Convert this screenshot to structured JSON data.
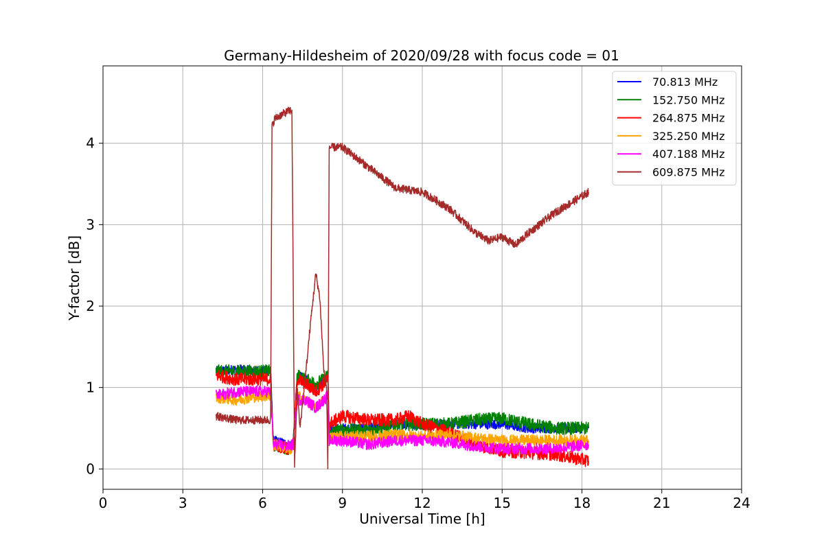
{
  "chart_data": {
    "type": "line",
    "title": "Germany-Hildesheim of 2020/09/28 with focus code = 01",
    "xlabel": "Universal Time [h]",
    "ylabel": "Y-factor [dB]",
    "xlim": [
      0,
      24
    ],
    "ylim": [
      -0.25,
      4.95
    ],
    "xticks": [
      0,
      3,
      6,
      9,
      12,
      15,
      18,
      21,
      24
    ],
    "yticks": [
      0,
      1,
      2,
      3,
      4
    ],
    "grid": true,
    "legend_position": "top-right",
    "series": [
      {
        "name": "  70.813 MHz",
        "color": "#0000ff",
        "noise": 0.06,
        "x": [
          4.25,
          5.0,
          6.0,
          6.3,
          6.4,
          7.0,
          7.15,
          7.3,
          7.6,
          8.0,
          8.3,
          8.45,
          8.5,
          9.0,
          10.0,
          11.0,
          12.0,
          13.0,
          14.0,
          15.0,
          16.0,
          17.0,
          18.25
        ],
        "y": [
          1.2,
          1.22,
          1.2,
          1.2,
          0.35,
          0.3,
          0.3,
          1.15,
          1.1,
          1.0,
          1.1,
          1.15,
          0.48,
          0.5,
          0.5,
          0.55,
          0.55,
          0.55,
          0.55,
          0.55,
          0.5,
          0.5,
          0.5
        ]
      },
      {
        "name": "152.750 MHz",
        "color": "#008000",
        "noise": 0.08,
        "x": [
          4.25,
          5.0,
          6.0,
          6.3,
          6.4,
          7.0,
          7.15,
          7.3,
          7.6,
          8.0,
          8.3,
          8.45,
          8.5,
          9.0,
          10.0,
          11.0,
          12.0,
          13.0,
          14.0,
          15.0,
          16.0,
          17.0,
          18.25
        ],
        "y": [
          1.2,
          1.2,
          1.2,
          1.2,
          0.3,
          0.25,
          0.3,
          1.15,
          1.1,
          1.05,
          1.1,
          1.15,
          0.45,
          0.48,
          0.48,
          0.55,
          0.55,
          0.55,
          0.6,
          0.62,
          0.55,
          0.5,
          0.5
        ]
      },
      {
        "name": "264.875 MHz",
        "color": "#ff0000",
        "noise": 0.08,
        "x": [
          4.25,
          5.0,
          6.0,
          6.3,
          6.4,
          7.0,
          7.15,
          7.3,
          7.6,
          8.0,
          8.3,
          8.45,
          8.5,
          9.0,
          10.0,
          11.0,
          11.5,
          12.0,
          13.0,
          14.0,
          15.0,
          16.0,
          17.0,
          18.25
        ],
        "y": [
          1.15,
          1.1,
          1.1,
          1.1,
          0.3,
          0.25,
          0.3,
          1.1,
          1.05,
          0.95,
          1.05,
          1.1,
          0.55,
          0.65,
          0.6,
          0.6,
          0.65,
          0.55,
          0.45,
          0.3,
          0.22,
          0.2,
          0.18,
          0.1
        ]
      },
      {
        "name": "325.250 MHz",
        "color": "#ffa500",
        "noise": 0.07,
        "x": [
          4.25,
          5.0,
          6.0,
          6.3,
          6.4,
          7.0,
          7.15,
          7.3,
          7.6,
          8.0,
          8.3,
          8.45,
          8.5,
          9.0,
          10.0,
          11.0,
          12.0,
          13.0,
          14.0,
          15.0,
          16.0,
          17.0,
          18.25
        ],
        "y": [
          0.88,
          0.85,
          0.9,
          0.9,
          0.3,
          0.25,
          0.25,
          0.9,
          0.85,
          0.75,
          0.85,
          0.9,
          0.38,
          0.4,
          0.4,
          0.42,
          0.4,
          0.42,
          0.38,
          0.35,
          0.35,
          0.35,
          0.35
        ]
      },
      {
        "name": "407.188 MHz",
        "color": "#ff00ff",
        "noise": 0.07,
        "x": [
          4.25,
          5.0,
          6.0,
          6.3,
          6.4,
          7.0,
          7.15,
          7.3,
          7.6,
          8.0,
          8.3,
          8.45,
          8.5,
          9.0,
          10.0,
          11.0,
          12.0,
          13.0,
          14.0,
          15.0,
          16.0,
          17.0,
          18.25
        ],
        "y": [
          0.9,
          0.95,
          0.95,
          0.95,
          0.3,
          0.28,
          0.3,
          0.85,
          0.85,
          0.75,
          0.85,
          0.9,
          0.35,
          0.35,
          0.3,
          0.35,
          0.35,
          0.33,
          0.28,
          0.25,
          0.25,
          0.25,
          0.3
        ]
      },
      {
        "name": "609.875 MHz",
        "color": "#a52a2a",
        "noise": 0.05,
        "x": [
          4.25,
          5.0,
          6.0,
          6.3,
          6.35,
          6.45,
          6.7,
          7.0,
          7.1,
          7.2,
          7.3,
          7.4,
          7.6,
          7.8,
          8.0,
          8.15,
          8.3,
          8.4,
          8.45,
          8.5,
          9.0,
          10.0,
          11.0,
          12.0,
          13.0,
          14.0,
          14.5,
          15.0,
          15.5,
          16.0,
          17.0,
          18.0,
          18.25
        ],
        "y": [
          0.65,
          0.6,
          0.6,
          0.6,
          4.2,
          4.3,
          4.35,
          4.4,
          4.4,
          0.05,
          1.0,
          0.5,
          1.1,
          1.8,
          2.4,
          2.1,
          1.2,
          1.0,
          0.05,
          3.95,
          3.95,
          3.7,
          3.45,
          3.4,
          3.2,
          2.9,
          2.8,
          2.85,
          2.75,
          2.9,
          3.15,
          3.35,
          3.4
        ]
      }
    ]
  }
}
